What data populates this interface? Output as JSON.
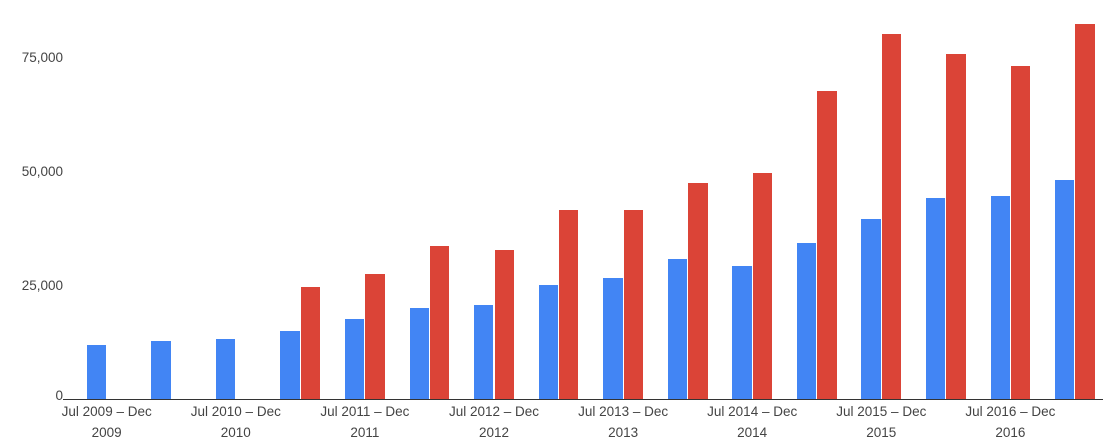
{
  "chart_data": {
    "type": "bar",
    "title": "",
    "legend": "none",
    "gridlines": false,
    "background_color": "#ffffff",
    "y_axis": {
      "tick_labels": [
        "0",
        "25,000",
        "50,000",
        "75,000"
      ],
      "tick_values": [
        0,
        25000,
        50000,
        75000
      ],
      "ylim": [
        0,
        87600
      ]
    },
    "x_axis": {
      "tick_labels": [
        "Jul 2009 – Dec 2009",
        "Jul 2010 – Dec 2010",
        "Jul 2011 – Dec 2011",
        "Jul 2012 – Dec 2012",
        "Jul 2013 – Dec 2013",
        "Jul 2014 – Dec 2014",
        "Jul 2015 – Dec 2015",
        "Jul 2016 – Dec 2016"
      ]
    },
    "group_labels": [
      "Jul 2009 – Dec 2009",
      "",
      "Jul 2010 – Dec 2010",
      "",
      "Jul 2011 – Dec 2011",
      "",
      "Jul 2012 – Dec 2012",
      "",
      "Jul 2013 – Dec 2013",
      "",
      "Jul 2014 – Dec 2014",
      "",
      "Jul 2015 – Dec 2015",
      "",
      "Jul 2016 – Dec 2016",
      ""
    ],
    "series": [
      {
        "name": "blue",
        "color": "#4285f4",
        "values": [
          12000,
          12900,
          13400,
          15100,
          17700,
          20200,
          20900,
          25300,
          26700,
          31000,
          29300,
          34500,
          39800,
          44300,
          44700,
          48300
        ]
      },
      {
        "name": "red",
        "color": "#db4437",
        "values": [
          null,
          null,
          null,
          24700,
          27700,
          33900,
          33000,
          41800,
          41800,
          47700,
          49800,
          67900,
          80300,
          75900,
          73200,
          82400
        ]
      }
    ]
  },
  "colors": {
    "axis_line": "#333333",
    "tick_label": "#444444",
    "blue_series": "#4285f4",
    "red_series": "#db4437"
  }
}
